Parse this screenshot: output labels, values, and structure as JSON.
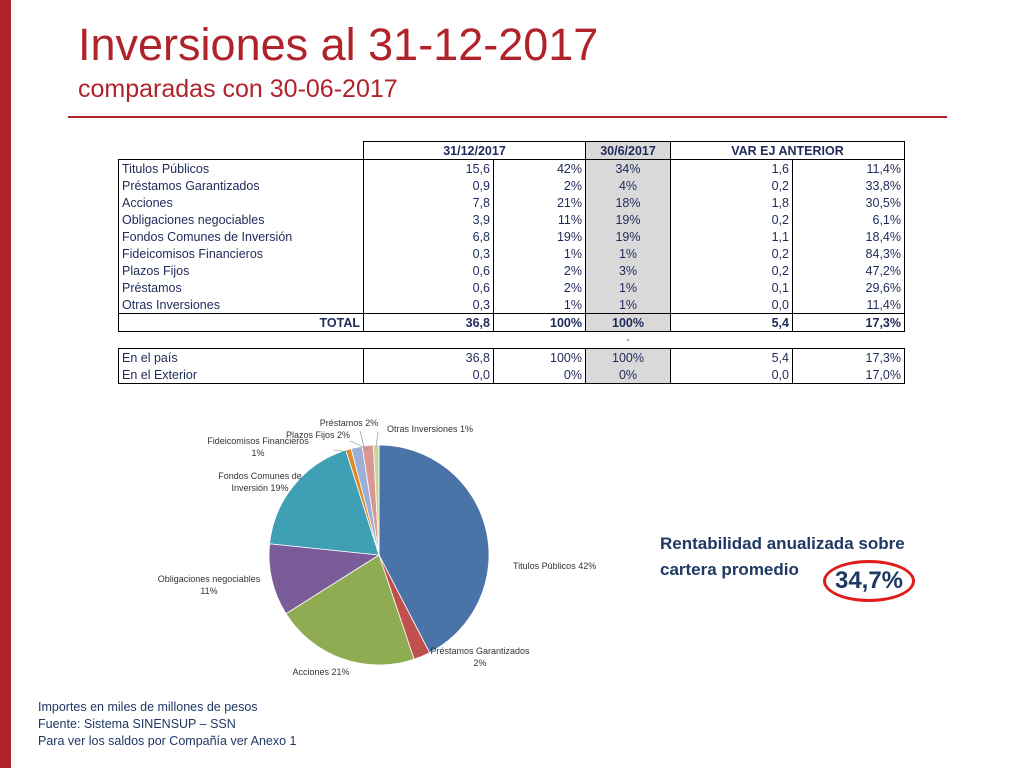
{
  "colors": {
    "accent": "#b0232a",
    "navy": "#1f3864",
    "shade": "#d9d9d9",
    "highlight_oval": "#e01b1b"
  },
  "header": {
    "title": "Inversiones al 31-12-2017",
    "subtitle": "comparadas con 30-06-2017"
  },
  "table": {
    "headers": {
      "col_dec": "31/12/2017",
      "col_jun": "30/6/2017",
      "col_var": "VAR EJ ANTERIOR"
    },
    "rows": [
      {
        "name": "Titulos Públicos",
        "dec_val": "15,6",
        "dec_pct": "42%",
        "jun_pct": "34%",
        "var_abs": "1,6",
        "var_pct": "11,4%"
      },
      {
        "name": "Préstamos Garantizados",
        "dec_val": "0,9",
        "dec_pct": "2%",
        "jun_pct": "4%",
        "var_abs": "0,2",
        "var_pct": "33,8%"
      },
      {
        "name": "Acciones",
        "dec_val": "7,8",
        "dec_pct": "21%",
        "jun_pct": "18%",
        "var_abs": "1,8",
        "var_pct": "30,5%"
      },
      {
        "name": "Obligaciones negociables",
        "dec_val": "3,9",
        "dec_pct": "11%",
        "jun_pct": "19%",
        "var_abs": "0,2",
        "var_pct": "6,1%"
      },
      {
        "name": "Fondos Comunes de Inversión",
        "dec_val": "6,8",
        "dec_pct": "19%",
        "jun_pct": "19%",
        "var_abs": "1,1",
        "var_pct": "18,4%"
      },
      {
        "name": "Fideicomisos Financieros",
        "dec_val": "0,3",
        "dec_pct": "1%",
        "jun_pct": "1%",
        "var_abs": "0,2",
        "var_pct": "84,3%"
      },
      {
        "name": "Plazos Fijos",
        "dec_val": "0,6",
        "dec_pct": "2%",
        "jun_pct": "3%",
        "var_abs": "0,2",
        "var_pct": "47,2%"
      },
      {
        "name": "Préstamos",
        "dec_val": "0,6",
        "dec_pct": "2%",
        "jun_pct": "1%",
        "var_abs": "0,1",
        "var_pct": "29,6%"
      },
      {
        "name": "Otras Inversiones",
        "dec_val": "0,3",
        "dec_pct": "1%",
        "jun_pct": "1%",
        "var_abs": "0,0",
        "var_pct": "11,4%"
      }
    ],
    "total": {
      "name": "TOTAL",
      "dec_val": "36,8",
      "dec_pct": "100%",
      "jun_pct": "100%",
      "var_abs": "5,4",
      "var_pct": "17,3%"
    },
    "separator": "-",
    "location_rows": [
      {
        "name": "En el país",
        "dec_val": "36,8",
        "dec_pct": "100%",
        "jun_pct": "100%",
        "var_abs": "5,4",
        "var_pct": "17,3%"
      },
      {
        "name": "En el Exterior",
        "dec_val": "0,0",
        "dec_pct": "0%",
        "jun_pct": "0%",
        "var_abs": "0,0",
        "var_pct": "17,0%"
      }
    ]
  },
  "chart_data": {
    "type": "pie",
    "labels": [
      "Titulos Públicos 42%",
      "Préstamos Garantizados 2%",
      "Acciones 21%",
      "Obligaciones negociables 11%",
      "Fondos Comunes de Inversión 19%",
      "Fideicomisos Financieros 1%",
      "Plazos Fijos 2%",
      "Préstamos 2%",
      "Otras Inversiones 1%"
    ],
    "values": [
      15.6,
      0.9,
      7.8,
      3.9,
      6.8,
      0.3,
      0.6,
      0.6,
      0.3
    ],
    "colors": [
      "#4a74a8",
      "#c0504d",
      "#8fac52",
      "#7a5c99",
      "#3e9fb5",
      "#e08a2e",
      "#9bb0d6",
      "#d99694",
      "#c3d69b"
    ],
    "legend": "none"
  },
  "rentabilidad": {
    "line1": "Rentabilidad anualizada sobre",
    "line2": "cartera promedio",
    "value": "34,7%"
  },
  "footer": {
    "line1": "Importes en miles de millones de pesos",
    "line2": "Fuente: Sistema SINENSUP – SSN",
    "line3": "Para ver los saldos por Compañía ver Anexo 1"
  }
}
